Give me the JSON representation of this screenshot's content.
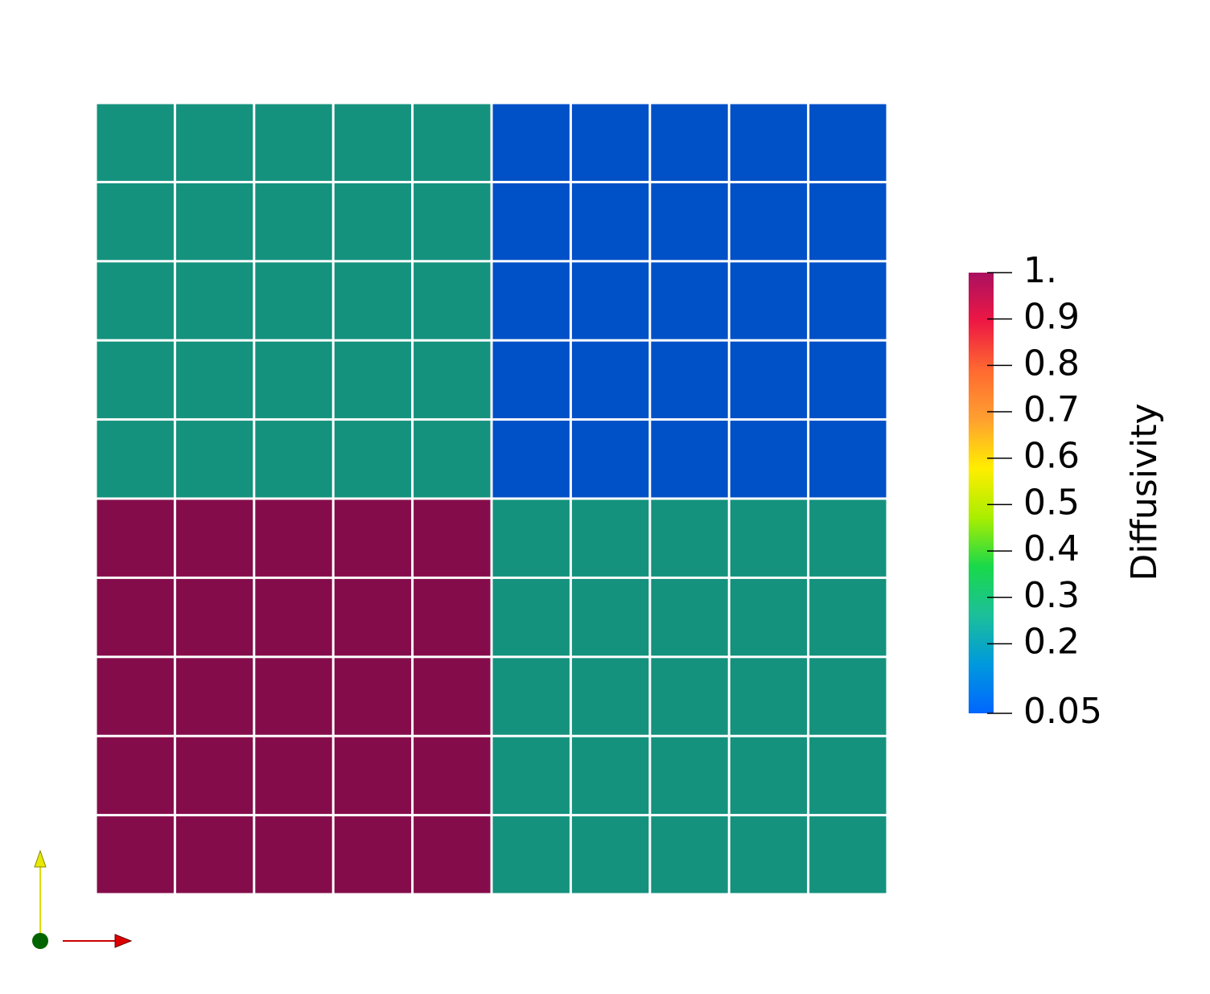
{
  "chart_data": {
    "type": "heatmap",
    "colorbar_title": "Diffusivity",
    "values": [
      [
        0.25,
        0.25,
        0.25,
        0.25,
        0.25,
        0.05,
        0.05,
        0.05,
        0.05,
        0.05
      ],
      [
        0.25,
        0.25,
        0.25,
        0.25,
        0.25,
        0.05,
        0.05,
        0.05,
        0.05,
        0.05
      ],
      [
        0.25,
        0.25,
        0.25,
        0.25,
        0.25,
        0.05,
        0.05,
        0.05,
        0.05,
        0.05
      ],
      [
        0.25,
        0.25,
        0.25,
        0.25,
        0.25,
        0.05,
        0.05,
        0.05,
        0.05,
        0.05
      ],
      [
        0.25,
        0.25,
        0.25,
        0.25,
        0.25,
        0.05,
        0.05,
        0.05,
        0.05,
        0.05
      ],
      [
        1,
        1,
        1,
        1,
        1,
        0.25,
        0.25,
        0.25,
        0.25,
        0.25
      ],
      [
        1,
        1,
        1,
        1,
        1,
        0.25,
        0.25,
        0.25,
        0.25,
        0.25
      ],
      [
        1,
        1,
        1,
        1,
        1,
        0.25,
        0.25,
        0.25,
        0.25,
        0.25
      ],
      [
        1,
        1,
        1,
        1,
        1,
        0.25,
        0.25,
        0.25,
        0.25,
        0.25
      ],
      [
        1,
        1,
        1,
        1,
        1,
        0.25,
        0.25,
        0.25,
        0.25,
        0.25
      ]
    ],
    "clim": [
      0.05,
      1
    ],
    "cticks": [
      0.05,
      0.2,
      0.3,
      0.4,
      0.5,
      0.6,
      0.7,
      0.8,
      0.9,
      {
        "value": 1,
        "label": "1."
      }
    ],
    "colormap": [
      "#0066ff",
      "#0099dd",
      "#1cbf9a",
      "#19d94a",
      "#aaee00",
      "#ffee00",
      "#ffa030",
      "#ff6a30",
      "#ee1844",
      "#aa1060"
    ]
  }
}
